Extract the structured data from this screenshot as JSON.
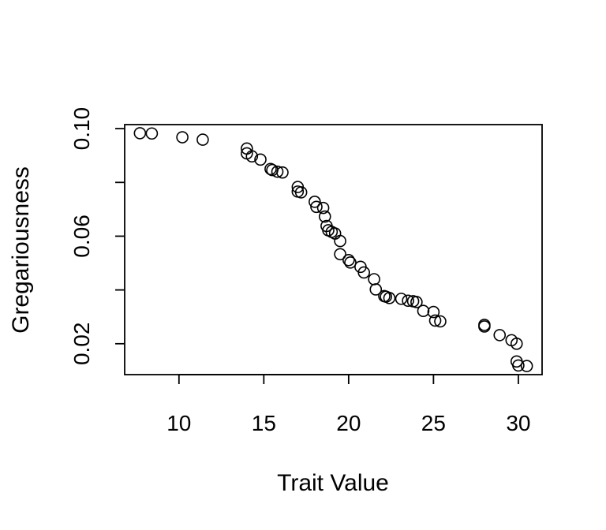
{
  "chart_data": {
    "type": "scatter",
    "title": "",
    "xlabel": "Trait Value",
    "ylabel": "Gregariousness",
    "xlim": [
      6.8,
      31.4
    ],
    "ylim": [
      0.0085,
      0.1015
    ],
    "xticks": [
      10,
      15,
      20,
      25,
      30
    ],
    "xtick_labels": [
      "10",
      "15",
      "20",
      "25",
      "30"
    ],
    "yticks": [
      0.02,
      0.04,
      0.06,
      0.08,
      0.1
    ],
    "ytick_labels": [
      "0.02",
      "",
      "0.06",
      "",
      "0.10"
    ],
    "grid": false,
    "colors": {
      "point_stroke": "#000000",
      "axis": "#000000",
      "background": "#ffffff"
    },
    "series": [
      {
        "name": "points",
        "x": [
          7.7,
          8.4,
          10.2,
          11.4,
          14.0,
          14.0,
          14.3,
          14.8,
          15.4,
          15.5,
          15.8,
          16.1,
          17.0,
          17.0,
          17.2,
          18.0,
          18.1,
          18.5,
          18.6,
          18.7,
          18.8,
          19.0,
          19.2,
          19.5,
          19.5,
          20.0,
          20.1,
          20.7,
          20.9,
          21.5,
          21.6,
          22.1,
          22.2,
          22.4,
          23.1,
          23.5,
          23.8,
          24.0,
          24.4,
          25.0,
          25.1,
          25.4,
          28.0,
          28.0,
          28.9,
          29.6,
          29.9,
          29.9,
          30.0,
          30.5
        ],
        "y": [
          0.0983,
          0.0982,
          0.0968,
          0.0959,
          0.0926,
          0.0908,
          0.0897,
          0.0885,
          0.085,
          0.0846,
          0.084,
          0.0837,
          0.0783,
          0.0766,
          0.0763,
          0.0728,
          0.0709,
          0.0705,
          0.0673,
          0.0638,
          0.0622,
          0.0616,
          0.061,
          0.0582,
          0.0533,
          0.0511,
          0.0502,
          0.0486,
          0.0465,
          0.044,
          0.0402,
          0.0377,
          0.0375,
          0.037,
          0.0367,
          0.036,
          0.0358,
          0.0355,
          0.0322,
          0.0318,
          0.0286,
          0.0283,
          0.027,
          0.0264,
          0.0232,
          0.0213,
          0.02,
          0.0134,
          0.0119,
          0.0117
        ]
      }
    ]
  }
}
